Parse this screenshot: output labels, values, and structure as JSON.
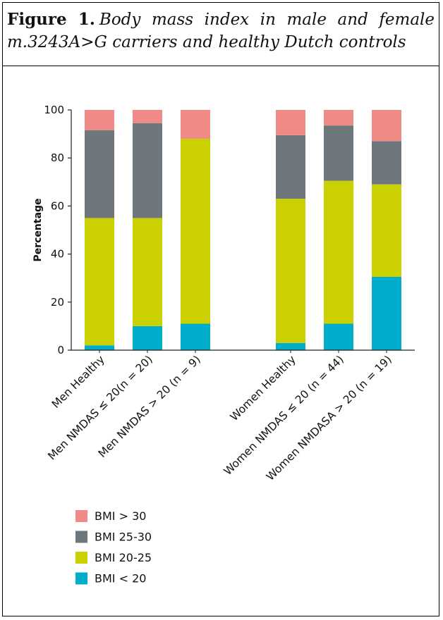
{
  "caption": {
    "label": "Figure 1.",
    "text": "Body mass index in male and female m.3243A>G carriers and healthy Dutch controls"
  },
  "chart_data": {
    "type": "bar",
    "stacked": true,
    "ylabel": "Percentage",
    "xlabel": "",
    "ylim": [
      0,
      100
    ],
    "yticks": [
      0,
      20,
      40,
      60,
      80,
      100
    ],
    "grid": false,
    "legend_position": "bottom-left",
    "categories": [
      "Men Healthy",
      "Men NMDAS ≤ 20(n = 20)",
      "Men NMDAS > 20 (n = 9)",
      "Women Healthy",
      "Women NMDAS ≤ 20 (n = 44)",
      "Women NMDASA > 20 (n = 19)"
    ],
    "series": [
      {
        "name": "BMI < 20",
        "color": "#00AECB",
        "values": [
          2,
          10,
          11,
          3,
          11,
          30.5
        ]
      },
      {
        "name": "BMI 20-25",
        "color": "#CBD100",
        "values": [
          53,
          45,
          77,
          60,
          59.5,
          38.5
        ]
      },
      {
        "name": "BMI 25-30",
        "color": "#6E787C",
        "values": [
          36.5,
          39.5,
          0,
          26.5,
          23,
          18
        ]
      },
      {
        "name": "BMI > 30",
        "color": "#F08A86",
        "values": [
          8.5,
          5.5,
          12,
          10.5,
          6.5,
          13
        ]
      }
    ],
    "legend_order": [
      "BMI > 30",
      "BMI 25-30",
      "BMI 20-25",
      "BMI < 20"
    ]
  }
}
